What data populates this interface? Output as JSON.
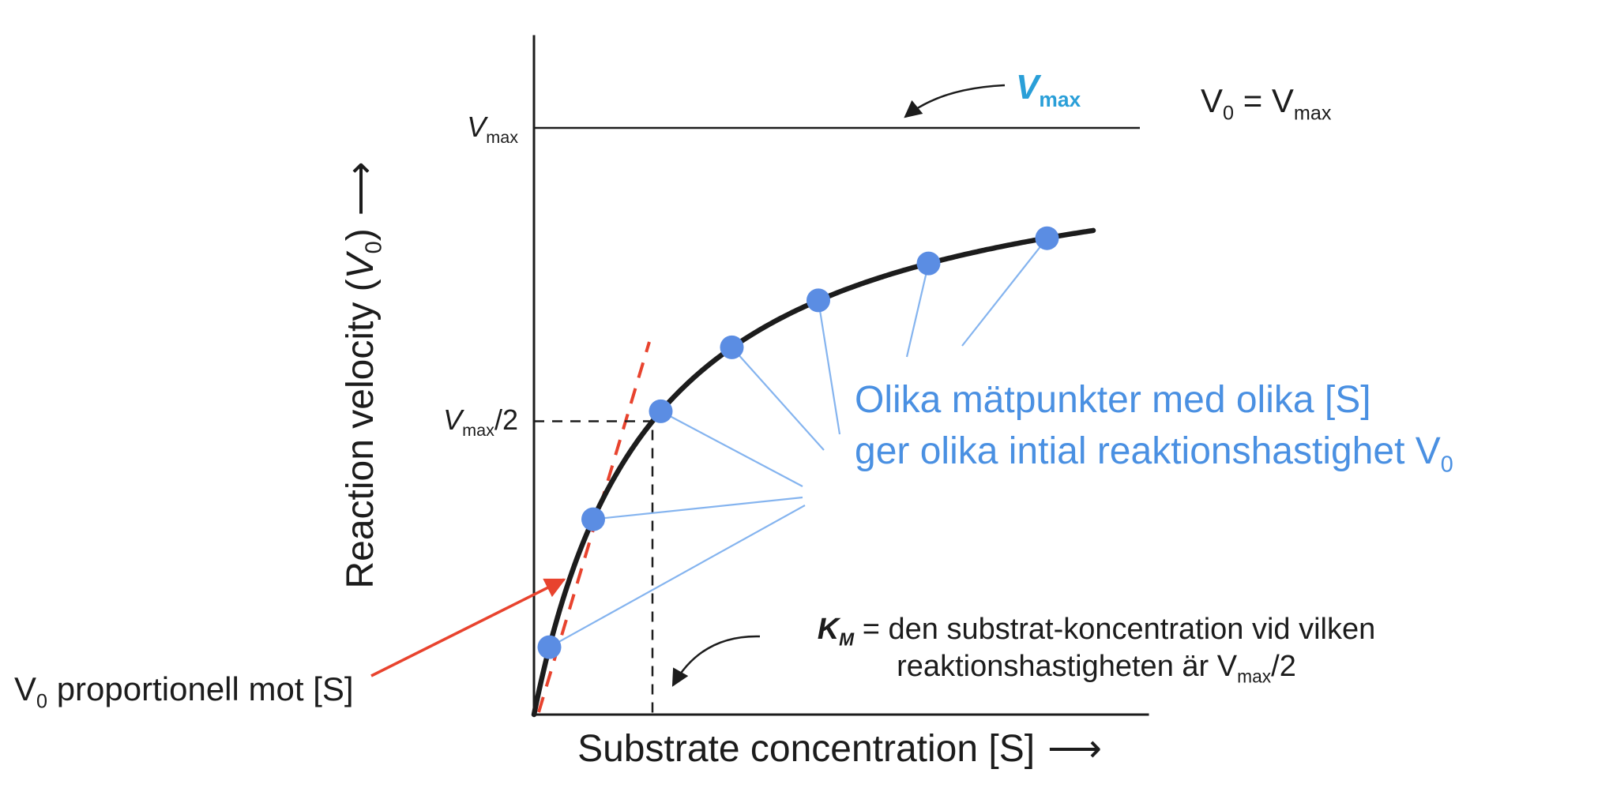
{
  "colors": {
    "axis": "#1c1c1c",
    "curve": "#1c1c1c",
    "points": "#5b8de3",
    "connectors": "#85b4ef",
    "note_blue": "#4a90e2",
    "vmax_label_blue": "#2a9fd8",
    "red": "#e8432e"
  },
  "y_axis": {
    "label_pre": "Reaction velocity (",
    "label_var": "V",
    "label_var_sub": "0",
    "label_post": ")",
    "arrow": "⟶"
  },
  "x_axis": {
    "label": "Substrate concentration [S]",
    "arrow": "⟶"
  },
  "ticks": {
    "vmax": {
      "var": "V",
      "sub": "max"
    },
    "half_vmax": {
      "var": "V",
      "sub": "max",
      "suffix": "/2"
    }
  },
  "labels": {
    "vmax_pointer": {
      "var": "V",
      "sub": "max"
    },
    "v0_equals_vmax": {
      "var1": "V",
      "sub1": "0",
      "equals": " = ",
      "var2": "V",
      "sub2": "max"
    },
    "note_blue_line1": "Olika mätpunkter med olika [S]",
    "note_blue_line2": "ger olika intial reaktionshastighet V",
    "note_blue_line2_sub": "0",
    "km_note_var": "K",
    "km_note_var_sub": "M",
    "km_note_line1": " = den substrat-koncentration vid vilken",
    "km_note_line2_pre": "reaktionshastigheten är V",
    "km_note_line2_sub": "max",
    "km_note_line2_suffix": "/2",
    "v0_prop_var": "V",
    "v0_prop_sub": "0",
    "v0_prop_text": " proportionell mot [S]"
  },
  "chart_data": {
    "type": "line",
    "xlabel": "Substrate concentration [S]",
    "ylabel": "Reaction velocity (V0)",
    "units": "normalized (Vmax = 1, Km = 1); axes have no numeric tick labels",
    "grid": false,
    "legend": false,
    "vmax": 1.0,
    "km": 1.0,
    "x_max_km_units": 4.73,
    "asymptote": {
      "y": 1.0,
      "label": "Vmax"
    },
    "half_max_marker": {
      "s": 1.0,
      "v": 0.5,
      "label": "Vmax/2",
      "style": "dashed"
    },
    "initial_slope_line": {
      "style": "red dashed",
      "meaning": "V0 proportional to [S] at low [S]"
    },
    "scatter_points": [
      {
        "s": 0.13,
        "v": 0.115
      },
      {
        "s": 0.5,
        "v": 0.333
      },
      {
        "s": 1.07,
        "v": 0.517
      },
      {
        "s": 1.67,
        "v": 0.626
      },
      {
        "s": 2.4,
        "v": 0.706
      },
      {
        "s": 3.33,
        "v": 0.769
      },
      {
        "s": 4.33,
        "v": 0.812
      }
    ]
  }
}
